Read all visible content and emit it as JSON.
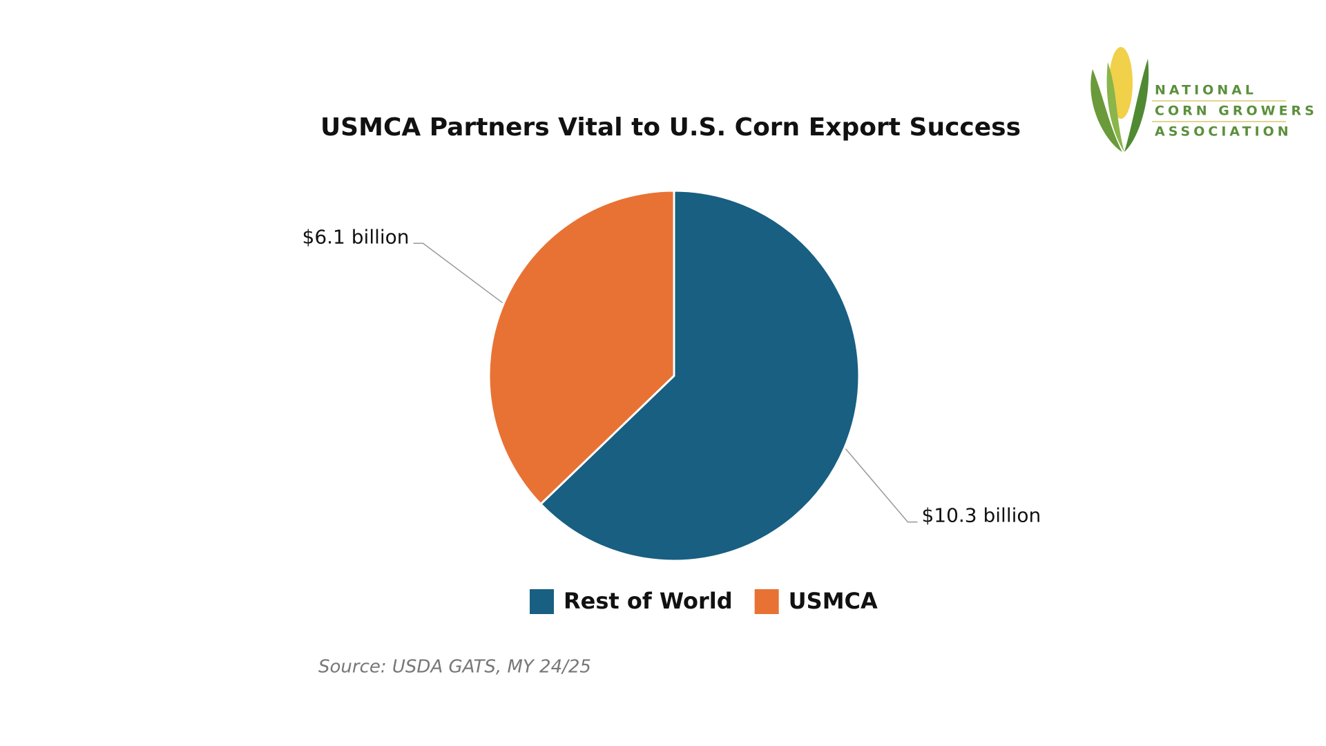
{
  "chart_data": {
    "type": "pie",
    "title": "USMCA Partners Vital to U.S. Corn Export Success",
    "categories": [
      "Rest of World",
      "USMCA"
    ],
    "values": [
      10.3,
      6.1
    ],
    "value_labels": [
      "$10.3 billion",
      "$6.1 billion"
    ],
    "colors": [
      "#185f82",
      "#e87234"
    ],
    "legend": "bottom",
    "source": "Source: USDA GATS, MY 24/25"
  },
  "logo": {
    "lines": [
      "NATIONAL",
      "CORN GROWERS",
      "ASSOCIATION"
    ]
  }
}
